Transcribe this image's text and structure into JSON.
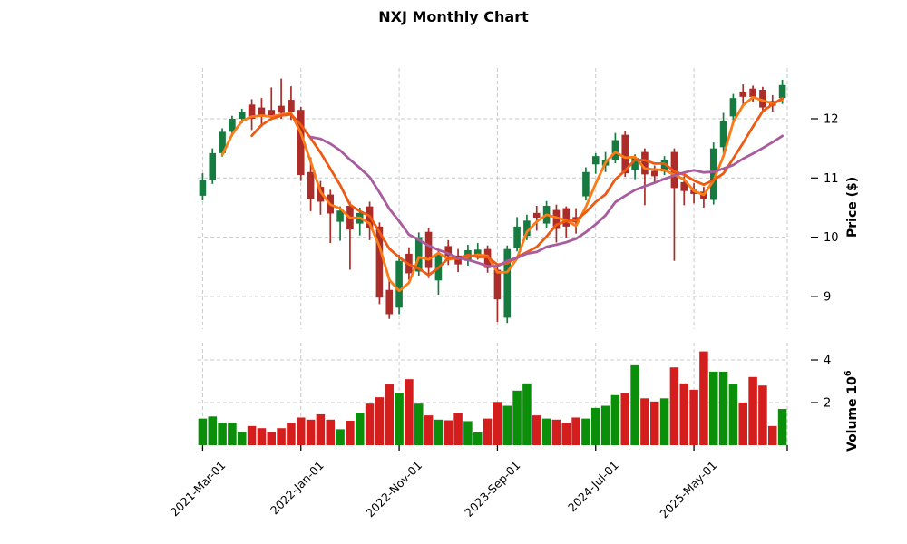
{
  "title": "NXJ Monthly Chart",
  "axes": {
    "price_label": "Price ($)",
    "volume_label": "Volume",
    "volume_unit_base": "10",
    "volume_unit_exp": "6",
    "price_ticks": [
      12,
      11,
      10,
      9
    ],
    "volume_ticks": [
      4,
      2
    ],
    "x_ticks": [
      {
        "index": 0,
        "label": "2021-Mar-01"
      },
      {
        "index": 10,
        "label": "2022-Jan-01"
      },
      {
        "index": 20,
        "label": "2022-Nov-01"
      },
      {
        "index": 30,
        "label": "2023-Sep-01"
      },
      {
        "index": 40,
        "label": "2024-Jul-01"
      },
      {
        "index": 50,
        "label": "2025-May-01"
      }
    ]
  },
  "colors": {
    "candle_up": "#177b41",
    "candle_down": "#ab2c28",
    "volume_up": "#0b8e09",
    "volume_down": "#d41e1e",
    "sma_fast": "#fb7b17",
    "sma_mid": "#ef5a12",
    "sma_slow": "#a95c9d",
    "grid": "#c9c9c9",
    "text": "#000000"
  },
  "chart_data": {
    "type": "candlestick+volume",
    "title": "NXJ Monthly Chart",
    "ylabel_price": "Price ($)",
    "ylabel_volume": "Volume 10^6",
    "grid": true,
    "price_range": [
      8.45,
      12.87
    ],
    "volume_range_millions": [
      0,
      4.8
    ],
    "moving_average_windows": [
      3,
      6,
      12
    ],
    "x": [
      "2021-03",
      "2021-04",
      "2021-05",
      "2021-06",
      "2021-07",
      "2021-08",
      "2021-09",
      "2021-10",
      "2021-11",
      "2021-12",
      "2022-01",
      "2022-02",
      "2022-03",
      "2022-04",
      "2022-05",
      "2022-06",
      "2022-07",
      "2022-08",
      "2022-09",
      "2022-10",
      "2022-11",
      "2022-12",
      "2023-01",
      "2023-02",
      "2023-03",
      "2023-04",
      "2023-05",
      "2023-06",
      "2023-07",
      "2023-08",
      "2023-09",
      "2023-10",
      "2023-11",
      "2023-12",
      "2024-01",
      "2024-02",
      "2024-03",
      "2024-04",
      "2024-05",
      "2024-06",
      "2024-07",
      "2024-08",
      "2024-09",
      "2024-10",
      "2024-11",
      "2024-12",
      "2025-01",
      "2025-02",
      "2025-03",
      "2025-04",
      "2025-05",
      "2025-06",
      "2025-07",
      "2025-08",
      "2025-09",
      "2025-10",
      "2025-11",
      "2025-12",
      "2026-01",
      "2026-02"
    ],
    "ohlc": [
      [
        10.7,
        11.08,
        10.62,
        10.97
      ],
      [
        10.97,
        11.5,
        10.9,
        11.42
      ],
      [
        11.42,
        11.84,
        11.36,
        11.78
      ],
      [
        11.78,
        12.05,
        11.7,
        12.0
      ],
      [
        12.0,
        12.17,
        11.92,
        12.11
      ],
      [
        12.24,
        12.33,
        11.81,
        12.0
      ],
      [
        12.19,
        12.35,
        11.86,
        12.05
      ],
      [
        12.15,
        12.53,
        11.98,
        12.06
      ],
      [
        12.22,
        12.68,
        12.0,
        12.1
      ],
      [
        12.32,
        12.55,
        11.98,
        12.12
      ],
      [
        12.15,
        12.2,
        10.95,
        11.05
      ],
      [
        11.1,
        11.35,
        10.44,
        10.65
      ],
      [
        10.85,
        10.95,
        10.38,
        10.6
      ],
      [
        10.72,
        10.8,
        9.9,
        10.4
      ],
      [
        10.26,
        10.52,
        9.94,
        10.45
      ],
      [
        10.53,
        10.6,
        9.45,
        10.13
      ],
      [
        10.23,
        10.5,
        10.03,
        10.41
      ],
      [
        10.52,
        10.6,
        9.95,
        10.15
      ],
      [
        10.18,
        10.25,
        8.87,
        8.98
      ],
      [
        9.11,
        9.28,
        8.62,
        8.7
      ],
      [
        8.81,
        9.7,
        8.7,
        9.6
      ],
      [
        9.72,
        9.83,
        9.28,
        9.39
      ],
      [
        9.42,
        10.08,
        9.35,
        10.0
      ],
      [
        10.09,
        10.15,
        9.31,
        9.48
      ],
      [
        9.27,
        9.8,
        9.03,
        9.72
      ],
      [
        9.85,
        9.95,
        9.53,
        9.68
      ],
      [
        9.69,
        9.8,
        9.41,
        9.54
      ],
      [
        9.6,
        9.87,
        9.52,
        9.78
      ],
      [
        9.7,
        9.9,
        9.62,
        9.79
      ],
      [
        9.8,
        9.86,
        9.4,
        9.48
      ],
      [
        9.45,
        9.52,
        8.57,
        8.95
      ],
      [
        8.64,
        9.86,
        8.55,
        9.8
      ],
      [
        9.82,
        10.34,
        9.76,
        10.18
      ],
      [
        10.02,
        10.38,
        9.95,
        10.28
      ],
      [
        10.41,
        10.53,
        10.11,
        10.33
      ],
      [
        10.23,
        10.61,
        10.15,
        10.53
      ],
      [
        10.46,
        10.55,
        9.91,
        10.14
      ],
      [
        10.49,
        10.52,
        9.99,
        10.18
      ],
      [
        10.34,
        10.49,
        10.06,
        10.25
      ],
      [
        10.69,
        11.18,
        10.62,
        11.1
      ],
      [
        11.23,
        11.42,
        11.07,
        11.37
      ],
      [
        11.21,
        11.44,
        11.1,
        11.31
      ],
      [
        11.31,
        11.76,
        11.25,
        11.64
      ],
      [
        11.73,
        11.8,
        11.02,
        11.08
      ],
      [
        11.13,
        11.4,
        10.98,
        11.34
      ],
      [
        11.44,
        11.5,
        10.54,
        11.06
      ],
      [
        11.12,
        11.21,
        10.93,
        11.03
      ],
      [
        11.11,
        11.37,
        11.05,
        11.31
      ],
      [
        11.44,
        11.5,
        9.6,
        10.83
      ],
      [
        10.93,
        11.03,
        10.54,
        10.78
      ],
      [
        10.8,
        10.91,
        10.57,
        10.73
      ],
      [
        10.77,
        10.85,
        10.5,
        10.64
      ],
      [
        10.63,
        11.6,
        10.55,
        11.5
      ],
      [
        11.52,
        12.1,
        11.42,
        11.97
      ],
      [
        12.04,
        12.42,
        11.95,
        12.35
      ],
      [
        12.46,
        12.58,
        12.25,
        12.37
      ],
      [
        12.51,
        12.56,
        12.28,
        12.37
      ],
      [
        12.49,
        12.54,
        12.1,
        12.19
      ],
      [
        12.3,
        12.4,
        12.12,
        12.22
      ],
      [
        12.35,
        12.66,
        12.25,
        12.57
      ]
    ],
    "volume_millions": [
      1.25,
      1.35,
      1.05,
      1.05,
      0.62,
      0.9,
      0.8,
      0.62,
      0.8,
      1.05,
      1.3,
      1.2,
      1.45,
      1.2,
      0.75,
      1.15,
      1.5,
      1.95,
      2.25,
      2.85,
      2.45,
      3.1,
      1.95,
      1.4,
      1.2,
      1.17,
      1.5,
      1.13,
      0.6,
      1.25,
      2.03,
      1.85,
      2.56,
      2.9,
      1.4,
      1.25,
      1.2,
      1.05,
      1.3,
      1.25,
      1.75,
      1.85,
      2.35,
      2.45,
      3.75,
      2.2,
      2.05,
      2.2,
      3.65,
      2.9,
      2.6,
      4.4,
      3.45,
      3.45,
      2.85,
      2.0,
      3.2,
      2.8,
      0.9,
      1.7
    ]
  }
}
